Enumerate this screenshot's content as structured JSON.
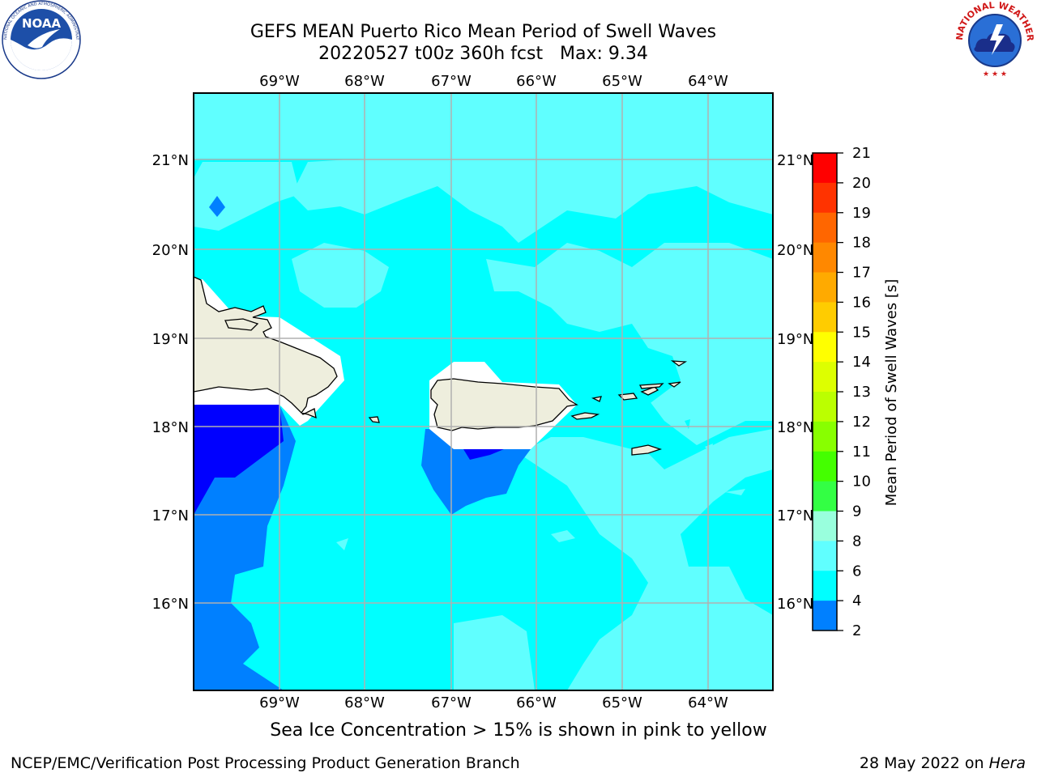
{
  "header": {
    "title_line1": "GEFS MEAN Puerto Rico Mean Period of Swell Waves",
    "title_line2": "20220527 t00z 360h fcst   Max: 9.34"
  },
  "caption": "Sea Ice Concentration > 15% is shown in pink to yellow",
  "footer": {
    "left": "NCEP/EMC/Verification Post Processing Product Generation Branch",
    "right_date": "28 May 2022 on ",
    "right_host": "Hera"
  },
  "logos": {
    "noaa_text": "NOAA",
    "noaa_ring_text": "NATIONAL OCEANIC AND ATMOSPHERIC ADMINISTRATION · U.S. DEPARTMENT OF COMMERCE",
    "nws_ring_text": "NATIONAL WEATHER SERVICE"
  },
  "map": {
    "lon_labels": [
      "69°W",
      "68°W",
      "67°W",
      "66°W",
      "65°W",
      "64°W"
    ],
    "lat_labels": [
      "21°N",
      "20°N",
      "19°N",
      "18°N",
      "17°N",
      "16°N"
    ],
    "colors": {
      "land": "#eeeedd",
      "level_2_4": "#0000ff",
      "level_4_6": "#0080ff",
      "level_6_8": "#00ffff",
      "level_8_9": "#60ffff",
      "gridline": "#b0b0b0"
    }
  },
  "colorbar": {
    "label": "Mean Period of Swell Waves [s]",
    "ticks": [
      "21",
      "20",
      "19",
      "18",
      "17",
      "16",
      "15",
      "14",
      "13",
      "12",
      "11",
      "10",
      "9",
      "8",
      "6",
      "4",
      "2"
    ],
    "colors_top_to_bottom": [
      "#ff0000",
      "#ff3300",
      "#ff6600",
      "#ff8800",
      "#ffaa00",
      "#ffcc00",
      "#ffff00",
      "#ddff00",
      "#bbff00",
      "#88ff00",
      "#44ff00",
      "#33ff44",
      "#99ffdd",
      "#60ffff",
      "#00ffff",
      "#0080ff",
      "#0000ff"
    ]
  }
}
